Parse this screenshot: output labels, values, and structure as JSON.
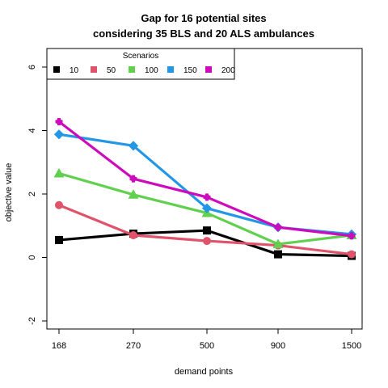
{
  "chart_data": {
    "type": "line",
    "title_line1": "Gap for 16 potential sites",
    "title_line2": "considering 35 BLS and 20 ALS ambulances",
    "xlabel": "demand points",
    "ylabel": "objective value",
    "categories": [
      "168",
      "270",
      "500",
      "900",
      "1500"
    ],
    "ylim": [
      -2,
      6
    ],
    "yticks": [
      -2,
      0,
      2,
      4,
      6
    ],
    "legend": {
      "title": "Scenarios",
      "placement": "top-left"
    },
    "grid": false,
    "series": [
      {
        "name": "10",
        "color": "#000000",
        "marker": "square",
        "values": [
          0.55,
          0.75,
          0.85,
          0.1,
          0.05
        ]
      },
      {
        "name": "50",
        "color": "#DF536B",
        "marker": "circle",
        "values": [
          1.65,
          0.7,
          0.52,
          0.38,
          0.1
        ]
      },
      {
        "name": "100",
        "color": "#61D04F",
        "marker": "triangle",
        "values": [
          2.65,
          1.98,
          1.4,
          0.42,
          0.7
        ]
      },
      {
        "name": "150",
        "color": "#2297E6",
        "marker": "diamond",
        "values": [
          3.88,
          3.52,
          1.55,
          0.95,
          0.73
        ]
      },
      {
        "name": "200",
        "color": "#CD0BBC",
        "marker": "plus",
        "values": [
          4.28,
          2.48,
          1.9,
          0.95,
          0.68
        ]
      }
    ]
  }
}
